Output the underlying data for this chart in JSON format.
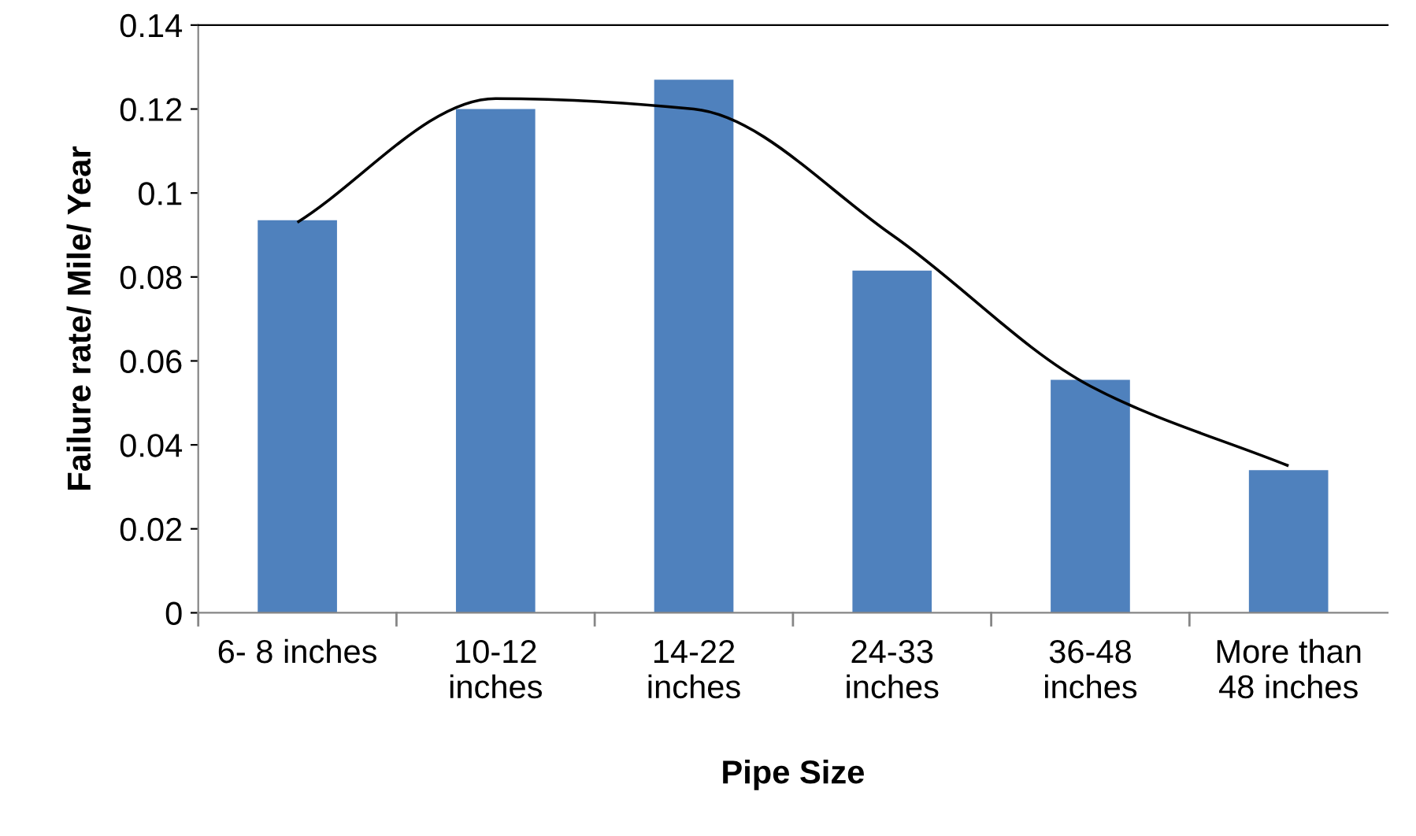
{
  "chart_data": {
    "type": "bar",
    "xlabel": "Pipe Size",
    "ylabel": "Failure rate/ Mile/ Year",
    "categories": [
      "6- 8 inches",
      "10-12\ninches",
      "14-22\ninches",
      "24-33\ninches",
      "36-48\ninches",
      "More than\n48 inches"
    ],
    "series": [
      {
        "color": "#4f81bd",
        "values": [
          0.0935,
          0.12,
          0.127,
          0.0815,
          0.0555,
          0.034
        ]
      },
      {
        "type": "line",
        "color": "#000000",
        "values": [
          0.093,
          0.1225,
          0.12,
          0.09,
          0.054,
          0.035
        ]
      }
    ],
    "ylim": [
      0,
      0.14
    ],
    "yticks": [
      0,
      0.02,
      0.04,
      0.06,
      0.08,
      0.1,
      0.12,
      0.14
    ],
    "grid": false,
    "legend": false
  }
}
